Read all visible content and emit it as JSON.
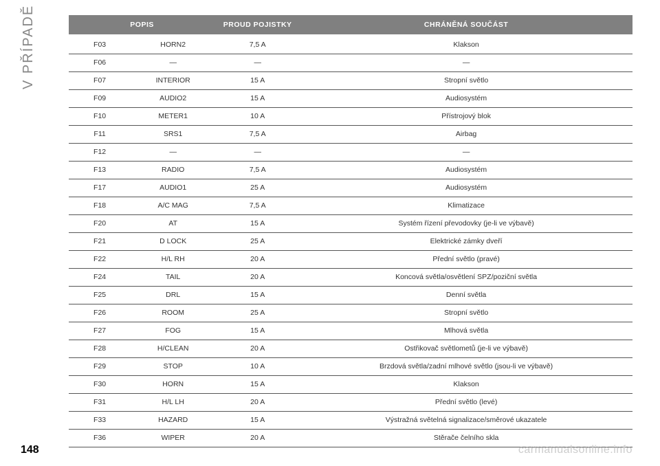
{
  "sidebar": "V PŘÍPADĚ NOUZE",
  "pageNumber": "148",
  "watermark": "carmanualsonline.info",
  "headers": {
    "desc": "POPIS",
    "fuse": "PROUD POJISTKY",
    "part": "CHRÁNĚNÁ SOUČÁST"
  },
  "rows": [
    {
      "code": "F03",
      "name": "HORN2",
      "fuse": "7,5 A",
      "part": "Klakson"
    },
    {
      "code": "F06",
      "name": "—",
      "fuse": "—",
      "part": "—"
    },
    {
      "code": "F07",
      "name": "INTERIOR",
      "fuse": "15 A",
      "part": "Stropní světlo"
    },
    {
      "code": "F09",
      "name": "AUDIO2",
      "fuse": "15 A",
      "part": "Audiosystém"
    },
    {
      "code": "F10",
      "name": "METER1",
      "fuse": "10 A",
      "part": "Přístrojový blok"
    },
    {
      "code": "F11",
      "name": "SRS1",
      "fuse": "7,5 A",
      "part": "Airbag"
    },
    {
      "code": "F12",
      "name": "—",
      "fuse": "—",
      "part": "—"
    },
    {
      "code": "F13",
      "name": "RADIO",
      "fuse": "7,5 A",
      "part": "Audiosystém"
    },
    {
      "code": "F17",
      "name": "AUDIO1",
      "fuse": "25 A",
      "part": "Audiosystém"
    },
    {
      "code": "F18",
      "name": "A/C MAG",
      "fuse": "7,5 A",
      "part": "Klimatizace"
    },
    {
      "code": "F20",
      "name": "AT",
      "fuse": "15 A",
      "part": "Systém řízení převodovky (je-li ve výbavě)"
    },
    {
      "code": "F21",
      "name": "D LOCK",
      "fuse": "25 A",
      "part": "Elektrické zámky dveří"
    },
    {
      "code": "F22",
      "name": "H/L RH",
      "fuse": "20 A",
      "part": "Přední světlo (pravé)"
    },
    {
      "code": "F24",
      "name": "TAIL",
      "fuse": "20 A",
      "part": "Koncová světla/osvětlení SPZ/poziční světla"
    },
    {
      "code": "F25",
      "name": "DRL",
      "fuse": "15 A",
      "part": "Denní světla"
    },
    {
      "code": "F26",
      "name": "ROOM",
      "fuse": "25 A",
      "part": "Stropní světlo"
    },
    {
      "code": "F27",
      "name": "FOG",
      "fuse": "15 A",
      "part": "Mlhová světla"
    },
    {
      "code": "F28",
      "name": "H/CLEAN",
      "fuse": "20 A",
      "part": "Ostřikovač světlometů (je-li ve výbavě)"
    },
    {
      "code": "F29",
      "name": "STOP",
      "fuse": "10 A",
      "part": "Brzdová světla/zadní mlhové světlo (jsou-li ve výbavě)"
    },
    {
      "code": "F30",
      "name": "HORN",
      "fuse": "15 A",
      "part": "Klakson"
    },
    {
      "code": "F31",
      "name": "H/L LH",
      "fuse": "20 A",
      "part": "Přední světlo (levé)"
    },
    {
      "code": "F33",
      "name": "HAZARD",
      "fuse": "15 A",
      "part": "Výstražná světelná signalizace/směrové ukazatele"
    },
    {
      "code": "F36",
      "name": "WIPER",
      "fuse": "20 A",
      "part": "Stěrače čelního skla"
    }
  ]
}
